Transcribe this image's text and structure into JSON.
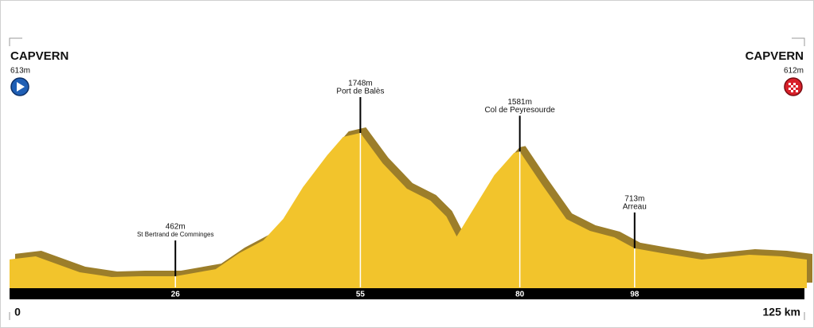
{
  "chart_data": {
    "type": "area",
    "x": [
      0,
      4.1,
      11,
      16,
      20.4,
      26,
      32.3,
      36,
      39.8,
      42.9,
      46,
      49.8,
      52.3,
      55,
      58.5,
      62.3,
      66,
      68.5,
      70.1,
      72.3,
      76,
      79.1,
      80,
      83.5,
      87.3,
      91,
      94.8,
      98,
      102.3,
      108.5,
      116,
      121,
      125
    ],
    "values": [
      613,
      641,
      498,
      455,
      462,
      462,
      526,
      669,
      784,
      976,
      1262,
      1548,
      1712,
      1748,
      1476,
      1248,
      1141,
      998,
      819,
      1026,
      1369,
      1569,
      1581,
      1283,
      976,
      869,
      812,
      713,
      669,
      612,
      655,
      641,
      612
    ],
    "color": "#f2c42c",
    "shade_color": "#9c7e2a",
    "xlim": [
      0,
      125
    ],
    "ylim": [
      355,
      2655
    ],
    "xticks": [
      0,
      26,
      55,
      80,
      98,
      {
        "value": 125,
        "label": "125 km"
      }
    ],
    "start": {
      "name": "CAPVERN",
      "value": 613,
      "label": "613m"
    },
    "finish": {
      "name": "CAPVERN",
      "value": 612,
      "label": "612m"
    },
    "annotations": [
      {
        "x": 26,
        "value": 462,
        "label": "462m",
        "name": "St Bertrand de Comminges"
      },
      {
        "x": 55,
        "value": 1748,
        "label": "1748m",
        "name": "Port de Balès"
      },
      {
        "x": 80,
        "value": 1581,
        "label": "1581m",
        "name": "Col de Peyresourde"
      },
      {
        "x": 98,
        "value": 713,
        "label": "713m",
        "name": "Arreau"
      }
    ]
  }
}
